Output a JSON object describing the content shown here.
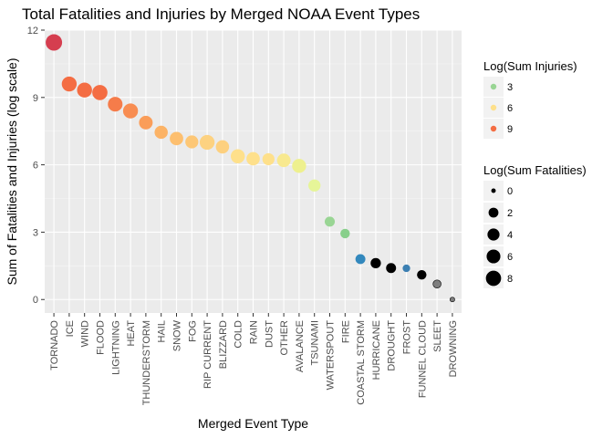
{
  "chart_data": {
    "type": "scatter",
    "title": "Total Fatalities and Injuries by Merged NOAA Event Types",
    "xlabel": "Merged Event Type",
    "ylabel": "Sum of Fatalities and Injuries (log scale)",
    "ylim": [
      -0.6,
      12
    ],
    "yticks": [
      0,
      3,
      6,
      9,
      12
    ],
    "grid": true,
    "legend_position": "right",
    "categories": [
      "TORNADO",
      "ICE",
      "WIND",
      "FLOOD",
      "LIGHTNING",
      "HEAT",
      "THUNDERSTORM",
      "HAIL",
      "SNOW",
      "FOG",
      "RIP CURRENT",
      "BLIZZARD",
      "COLD",
      "RAIN",
      "DUST",
      "OTHER",
      "AVALANCE",
      "TSUNAMI",
      "WATERSPOUT",
      "FIRE",
      "COASTAL STORM",
      "HURRICANE",
      "DROUGHT",
      "FROST",
      "FUNNEL CLOUD",
      "SLEET",
      "DROWNING"
    ],
    "points": [
      {
        "x": "TORNADO",
        "y": 11.45,
        "log_injuries": 11.4,
        "log_fatalities": 8.6,
        "color": "#d53e4f"
      },
      {
        "x": "ICE",
        "y": 9.6,
        "log_injuries": 9.5,
        "log_fatalities": 6.5,
        "color": "#f46d43"
      },
      {
        "x": "WIND",
        "y": 9.33,
        "log_injuries": 9.2,
        "log_fatalities": 6.6,
        "color": "#f46d43"
      },
      {
        "x": "FLOOD",
        "y": 9.22,
        "log_injuries": 9.0,
        "log_fatalities": 6.9,
        "color": "#f46d43"
      },
      {
        "x": "LIGHTNING",
        "y": 8.7,
        "log_injuries": 8.6,
        "log_fatalities": 6.2,
        "color": "#f57c4a"
      },
      {
        "x": "HEAT",
        "y": 8.4,
        "log_injuries": 8.2,
        "log_fatalities": 6.5,
        "color": "#f88d52"
      },
      {
        "x": "THUNDERSTORM",
        "y": 7.88,
        "log_injuries": 7.8,
        "log_fatalities": 5.0,
        "color": "#fa9d59"
      },
      {
        "x": "HAIL",
        "y": 7.45,
        "log_injuries": 7.4,
        "log_fatalities": 4.5,
        "color": "#fcb366"
      },
      {
        "x": "SNOW",
        "y": 7.17,
        "log_injuries": 7.0,
        "log_fatalities": 4.8,
        "color": "#fdbf6f"
      },
      {
        "x": "FOG",
        "y": 7.02,
        "log_injuries": 6.9,
        "log_fatalities": 4.3,
        "color": "#fdc776"
      },
      {
        "x": "RIP CURRENT",
        "y": 7.0,
        "log_injuries": 6.4,
        "log_fatalities": 6.5,
        "color": "#fdd281"
      },
      {
        "x": "BLIZZARD",
        "y": 6.8,
        "log_injuries": 6.6,
        "log_fatalities": 4.6,
        "color": "#fdd07f"
      },
      {
        "x": "COLD",
        "y": 6.38,
        "log_injuries": 6.0,
        "log_fatalities": 5.5,
        "color": "#fee08b"
      },
      {
        "x": "RAIN",
        "y": 6.27,
        "log_injuries": 6.0,
        "log_fatalities": 4.7,
        "color": "#fee08b"
      },
      {
        "x": "DUST",
        "y": 6.25,
        "log_injuries": 6.2,
        "log_fatalities": 3.4,
        "color": "#fee08b"
      },
      {
        "x": "OTHER",
        "y": 6.2,
        "log_injuries": 5.9,
        "log_fatalities": 4.9,
        "color": "#f8e98f"
      },
      {
        "x": "AVALANCE",
        "y": 5.95,
        "log_injuries": 5.0,
        "log_fatalities": 5.4,
        "color": "#eef08e"
      },
      {
        "x": "TSUNAMI",
        "y": 5.08,
        "log_injuries": 4.8,
        "log_fatalities": 3.5,
        "color": "#e6f598"
      },
      {
        "x": "WATERSPOUT",
        "y": 3.47,
        "log_injuries": 3.4,
        "log_fatalities": 1.8,
        "color": "#99d594"
      },
      {
        "x": "FIRE",
        "y": 2.94,
        "log_injuries": 2.8,
        "log_fatalities": 1.4,
        "color": "#88cf8b"
      },
      {
        "x": "COASTAL STORM",
        "y": 1.8,
        "log_injuries": 0.3,
        "log_fatalities": 1.7,
        "color": "#3288bd"
      },
      {
        "x": "HURRICANE",
        "y": 1.62,
        "log_injuries": null,
        "log_fatalities": 1.6,
        "color": "#000000"
      },
      {
        "x": "DROUGHT",
        "y": 1.4,
        "log_injuries": null,
        "log_fatalities": 1.4,
        "color": "#000000"
      },
      {
        "x": "FROST",
        "y": 1.39,
        "log_injuries": 0.3,
        "log_fatalities": 0.5,
        "color": "#3b7fb2"
      },
      {
        "x": "FUNNEL CLOUD",
        "y": 1.1,
        "log_injuries": null,
        "log_fatalities": 1.1,
        "color": "#000000"
      },
      {
        "x": "SLEET",
        "y": 0.69,
        "log_injuries": null,
        "log_fatalities": 0.7,
        "color": "#7f7f7f"
      },
      {
        "x": "DROWNING",
        "y": 0.0,
        "log_injuries": null,
        "log_fatalities": 0.0,
        "color": "#7f7f7f"
      }
    ],
    "legend_color": {
      "title": "Log(Sum Injuries)",
      "entries": [
        {
          "label": "3",
          "color": "#99d594"
        },
        {
          "label": "6",
          "color": "#fee08b"
        },
        {
          "label": "9",
          "color": "#f46d43"
        }
      ]
    },
    "legend_size": {
      "title": "Log(Sum Fatalities)",
      "entries": [
        {
          "label": "0",
          "value": 0
        },
        {
          "label": "2",
          "value": 2
        },
        {
          "label": "4",
          "value": 4
        },
        {
          "label": "6",
          "value": 6
        },
        {
          "label": "8",
          "value": 8
        }
      ]
    }
  }
}
